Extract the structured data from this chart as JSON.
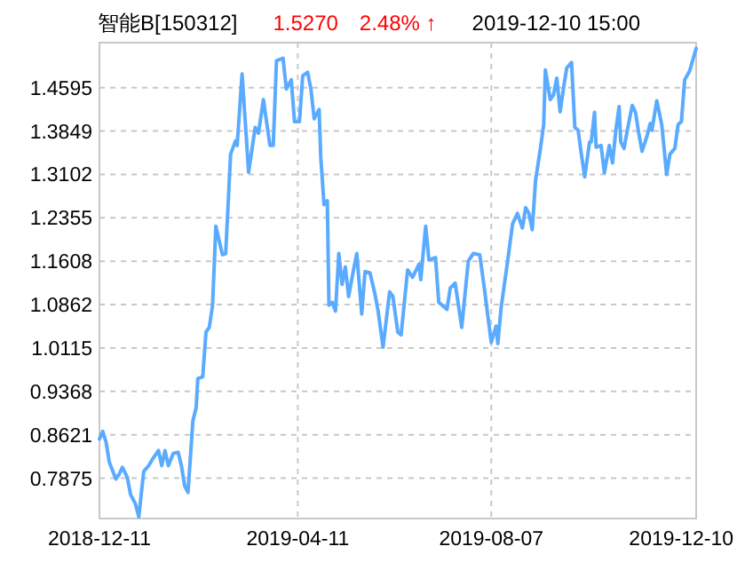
{
  "chart_data": {
    "type": "line",
    "title": "智能B[150312]",
    "annotations": [
      "1.5270",
      "2.48% ↑",
      "2019-12-10 15:00"
    ],
    "x": [
      "2018-12-11",
      "2018-12-13",
      "2018-12-15",
      "2018-12-17",
      "2018-12-21",
      "2018-12-23",
      "2018-12-25",
      "2018-12-28",
      "2018-12-30",
      "2019-01-02",
      "2019-01-04",
      "2019-01-07",
      "2019-01-10",
      "2019-01-13",
      "2019-01-16",
      "2019-01-18",
      "2019-01-20",
      "2019-01-22",
      "2019-01-25",
      "2019-01-28",
      "2019-01-30",
      "2019-02-01",
      "2019-02-03",
      "2019-02-06",
      "2019-02-08",
      "2019-02-09",
      "2019-02-12",
      "2019-02-14",
      "2019-02-16",
      "2019-02-18",
      "2019-02-20",
      "2019-02-24",
      "2019-02-26",
      "2019-03-01",
      "2019-03-04",
      "2019-03-05",
      "2019-03-08",
      "2019-03-12",
      "2019-03-16",
      "2019-03-18",
      "2019-03-21",
      "2019-03-25",
      "2019-03-27",
      "2019-03-29",
      "2019-04-02",
      "2019-04-04",
      "2019-04-07",
      "2019-04-09",
      "2019-04-12",
      "2019-04-14",
      "2019-04-17",
      "2019-04-19",
      "2019-04-21",
      "2019-04-24",
      "2019-04-25",
      "2019-04-27",
      "2019-04-29",
      "2019-04-30",
      "2019-05-02",
      "2019-05-04",
      "2019-05-06",
      "2019-05-08",
      "2019-05-10",
      "2019-05-12",
      "2019-05-15",
      "2019-05-17",
      "2019-05-20",
      "2019-05-22",
      "2019-05-25",
      "2019-05-28",
      "2019-05-30",
      "2019-06-02",
      "2019-06-06",
      "2019-06-08",
      "2019-06-11",
      "2019-06-13",
      "2019-06-17",
      "2019-06-20",
      "2019-06-24",
      "2019-06-25",
      "2019-06-28",
      "2019-06-30",
      "2019-07-04",
      "2019-07-06",
      "2019-07-11",
      "2019-07-13",
      "2019-07-16",
      "2019-07-20",
      "2019-07-24",
      "2019-07-27",
      "2019-07-31",
      "2019-08-03",
      "2019-08-07",
      "2019-08-10",
      "2019-08-11",
      "2019-08-13",
      "2019-08-15",
      "2019-08-17",
      "2019-08-20",
      "2019-08-23",
      "2019-08-26",
      "2019-08-28",
      "2019-08-30",
      "2019-09-01",
      "2019-09-03",
      "2019-09-06",
      "2019-09-08",
      "2019-09-09",
      "2019-09-12",
      "2019-09-14",
      "2019-09-16",
      "2019-09-18",
      "2019-09-20",
      "2019-09-22",
      "2019-09-25",
      "2019-09-27",
      "2019-09-29",
      "2019-10-01",
      "2019-10-03",
      "2019-10-06",
      "2019-10-07",
      "2019-10-09",
      "2019-10-10",
      "2019-10-13",
      "2019-10-15",
      "2019-10-18",
      "2019-10-20",
      "2019-10-22",
      "2019-10-24",
      "2019-10-25",
      "2019-10-27",
      "2019-10-29",
      "2019-11-01",
      "2019-11-03",
      "2019-11-05",
      "2019-11-07",
      "2019-11-10",
      "2019-11-12",
      "2019-11-13",
      "2019-11-16",
      "2019-11-19",
      "2019-11-22",
      "2019-11-24",
      "2019-11-27",
      "2019-11-29",
      "2019-12-01",
      "2019-12-03",
      "2019-12-06",
      "2019-12-10"
    ],
    "series": [
      {
        "color": "#5aabff",
        "values": [
          0.855,
          0.868,
          0.85,
          0.815,
          0.786,
          0.794,
          0.806,
          0.789,
          0.759,
          0.743,
          0.721,
          0.799,
          0.809,
          0.823,
          0.835,
          0.809,
          0.835,
          0.809,
          0.83,
          0.832,
          0.809,
          0.774,
          0.763,
          0.886,
          0.909,
          0.959,
          0.962,
          1.039,
          1.047,
          1.085,
          1.221,
          1.172,
          1.174,
          1.345,
          1.368,
          1.36,
          1.483,
          1.314,
          1.391,
          1.381,
          1.439,
          1.36,
          1.36,
          1.506,
          1.51,
          1.457,
          1.473,
          1.401,
          1.401,
          1.48,
          1.486,
          1.457,
          1.406,
          1.422,
          1.34,
          1.258,
          1.265,
          1.085,
          1.09,
          1.075,
          1.174,
          1.121,
          1.151,
          1.1,
          1.146,
          1.174,
          1.07,
          1.143,
          1.141,
          1.105,
          1.075,
          1.013,
          1.108,
          1.1,
          1.039,
          1.034,
          1.146,
          1.133,
          1.156,
          1.129,
          1.221,
          1.163,
          1.167,
          1.09,
          1.078,
          1.115,
          1.123,
          1.047,
          1.161,
          1.174,
          1.172,
          1.11,
          1.021,
          1.049,
          1.019,
          1.08,
          1.121,
          1.161,
          1.225,
          1.243,
          1.218,
          1.253,
          1.243,
          1.215,
          1.299,
          1.355,
          1.396,
          1.49,
          1.439,
          1.447,
          1.476,
          1.418,
          1.457,
          1.493,
          1.503,
          1.391,
          1.386,
          1.345,
          1.306,
          1.366,
          1.366,
          1.417,
          1.357,
          1.36,
          1.313,
          1.36,
          1.33,
          1.386,
          1.427,
          1.366,
          1.355,
          1.386,
          1.429,
          1.417,
          1.381,
          1.35,
          1.376,
          1.398,
          1.386,
          1.437,
          1.396,
          1.31,
          1.345,
          1.355,
          1.396,
          1.401,
          1.473,
          1.488,
          1.527
        ]
      }
    ],
    "xlim": [
      "2018-12-11",
      "2019-12-10"
    ],
    "xticks": [
      "2018-12-11",
      "2019-04-11",
      "2019-08-07",
      "2019-12-10"
    ],
    "ylim": [
      0.718,
      1.537
    ],
    "yticks": [
      0.7875,
      0.8621,
      0.9368,
      1.0115,
      1.0862,
      1.1608,
      1.2355,
      1.3102,
      1.3849,
      1.4595
    ],
    "grid": true
  }
}
